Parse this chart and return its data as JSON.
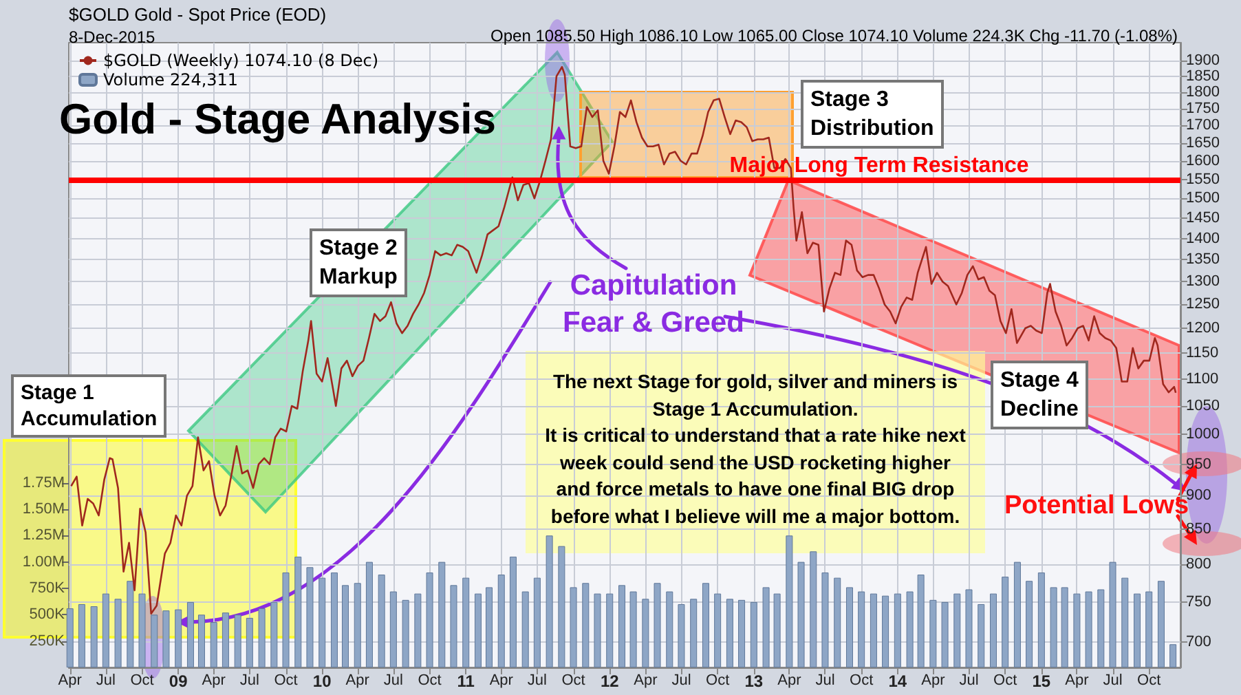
{
  "chart_data": {
    "type": "line",
    "title": "Gold - Stage Analysis",
    "log": "y",
    "grid": true,
    "legend": "top left",
    "xlim": [
      "2008-03-29",
      "2015-12-20"
    ],
    "xticks": [
      {
        "value": "2008-04",
        "label": "Apr"
      },
      {
        "value": "2008-07",
        "label": "Jul"
      },
      {
        "value": "2008-10",
        "label": "Oct"
      },
      {
        "value": "2009-01",
        "label": "09"
      },
      {
        "value": "2009-04",
        "label": "Apr"
      },
      {
        "value": "2009-07",
        "label": "Jul"
      },
      {
        "value": "2009-10",
        "label": "Oct"
      },
      {
        "value": "2010-01",
        "label": "10"
      },
      {
        "value": "2010-04",
        "label": "Apr"
      },
      {
        "value": "2010-07",
        "label": "Jul"
      },
      {
        "value": "2010-10",
        "label": "Oct"
      },
      {
        "value": "2011-01",
        "label": "11"
      },
      {
        "value": "2011-04",
        "label": "Apr"
      },
      {
        "value": "2011-07",
        "label": "Jul"
      },
      {
        "value": "2011-10",
        "label": "Oct"
      },
      {
        "value": "2012-01",
        "label": "12"
      },
      {
        "value": "2012-04",
        "label": "Apr"
      },
      {
        "value": "2012-07",
        "label": "Jul"
      },
      {
        "value": "2012-10",
        "label": "Oct"
      },
      {
        "value": "2013-01",
        "label": "13"
      },
      {
        "value": "2013-04",
        "label": "Apr"
      },
      {
        "value": "2013-07",
        "label": "Jul"
      },
      {
        "value": "2013-10",
        "label": "Oct"
      },
      {
        "value": "2014-01",
        "label": "14"
      },
      {
        "value": "2014-04",
        "label": "Apr"
      },
      {
        "value": "2014-07",
        "label": "Jul"
      },
      {
        "value": "2014-10",
        "label": "Oct"
      },
      {
        "value": "2015-01",
        "label": "15"
      },
      {
        "value": "2015-04",
        "label": "Apr"
      },
      {
        "value": "2015-07",
        "label": "Jul"
      },
      {
        "value": "2015-10",
        "label": "Oct"
      }
    ],
    "ylim": [
      670,
      1960
    ],
    "yticks": [
      700,
      750,
      800,
      850,
      900,
      950,
      1000,
      1050,
      1100,
      1150,
      1200,
      1250,
      1300,
      1350,
      1400,
      1450,
      1500,
      1550,
      1600,
      1650,
      1700,
      1750,
      1800,
      1850,
      1900
    ],
    "y2lim": [
      0,
      5920000
    ],
    "y2ticks": [
      {
        "value": 250000,
        "label": "250K"
      },
      {
        "value": 500000,
        "label": "500K"
      },
      {
        "value": 750000,
        "label": "750K"
      },
      {
        "value": 1000000,
        "label": "1.00M"
      },
      {
        "value": 1250000,
        "label": "1.25M"
      },
      {
        "value": 1500000,
        "label": "1.50M"
      },
      {
        "value": 1750000,
        "label": "1.75M"
      }
    ],
    "series": [
      {
        "name": "$GOLD (Weekly) 1074.10 (8 Dec)",
        "color": "#a0281e",
        "x": [
          "2008-04-04",
          "2008-04-18",
          "2008-05-02",
          "2008-05-16",
          "2008-05-30",
          "2008-06-13",
          "2008-06-27",
          "2008-07-11",
          "2008-07-18",
          "2008-08-01",
          "2008-08-15",
          "2008-08-29",
          "2008-09-12",
          "2008-09-26",
          "2008-10-10",
          "2008-10-24",
          "2008-11-07",
          "2008-11-28",
          "2008-12-12",
          "2008-12-26",
          "2009-01-09",
          "2009-01-23",
          "2009-02-06",
          "2009-02-20",
          "2009-03-06",
          "2009-03-20",
          "2009-04-03",
          "2009-04-17",
          "2009-05-01",
          "2009-05-15",
          "2009-05-29",
          "2009-06-12",
          "2009-06-26",
          "2009-07-10",
          "2009-07-24",
          "2009-08-07",
          "2009-08-21",
          "2009-09-04",
          "2009-09-18",
          "2009-10-02",
          "2009-10-16",
          "2009-10-30",
          "2009-11-13",
          "2009-11-27",
          "2009-12-04",
          "2009-12-18",
          "2010-01-01",
          "2010-01-15",
          "2010-01-29",
          "2010-02-05",
          "2010-02-19",
          "2010-03-05",
          "2010-03-19",
          "2010-04-02",
          "2010-04-16",
          "2010-04-30",
          "2010-05-14",
          "2010-05-28",
          "2010-06-11",
          "2010-06-25",
          "2010-07-09",
          "2010-07-23",
          "2010-08-06",
          "2010-08-20",
          "2010-09-03",
          "2010-09-17",
          "2010-10-01",
          "2010-10-15",
          "2010-10-29",
          "2010-11-12",
          "2010-11-26",
          "2010-12-10",
          "2010-12-24",
          "2011-01-07",
          "2011-01-28",
          "2011-02-11",
          "2011-02-25",
          "2011-03-11",
          "2011-03-25",
          "2011-04-08",
          "2011-04-29",
          "2011-05-13",
          "2011-05-27",
          "2011-06-10",
          "2011-06-24",
          "2011-07-08",
          "2011-07-22",
          "2011-08-05",
          "2011-08-19",
          "2011-09-02",
          "2011-09-09",
          "2011-09-23",
          "2011-10-07",
          "2011-10-21",
          "2011-11-04",
          "2011-11-18",
          "2011-12-02",
          "2011-12-16",
          "2011-12-30",
          "2012-01-13",
          "2012-01-27",
          "2012-02-10",
          "2012-02-24",
          "2012-03-09",
          "2012-03-23",
          "2012-04-06",
          "2012-04-20",
          "2012-05-04",
          "2012-05-18",
          "2012-06-01",
          "2012-06-15",
          "2012-06-29",
          "2012-07-13",
          "2012-07-27",
          "2012-08-10",
          "2012-08-24",
          "2012-09-07",
          "2012-09-21",
          "2012-10-05",
          "2012-10-19",
          "2012-11-02",
          "2012-11-16",
          "2012-11-30",
          "2012-12-14",
          "2012-12-28",
          "2013-01-11",
          "2013-01-25",
          "2013-02-08",
          "2013-02-22",
          "2013-03-08",
          "2013-03-22",
          "2013-04-05",
          "2013-04-12",
          "2013-04-19",
          "2013-05-03",
          "2013-05-17",
          "2013-05-31",
          "2013-06-14",
          "2013-06-28",
          "2013-07-12",
          "2013-07-26",
          "2013-08-09",
          "2013-08-23",
          "2013-09-06",
          "2013-09-20",
          "2013-10-04",
          "2013-10-18",
          "2013-11-01",
          "2013-11-15",
          "2013-11-29",
          "2013-12-13",
          "2013-12-27",
          "2014-01-10",
          "2014-01-24",
          "2014-02-07",
          "2014-02-21",
          "2014-03-14",
          "2014-03-28",
          "2014-04-11",
          "2014-04-25",
          "2014-05-09",
          "2014-05-30",
          "2014-06-13",
          "2014-06-27",
          "2014-07-11",
          "2014-07-25",
          "2014-08-08",
          "2014-08-22",
          "2014-09-05",
          "2014-09-19",
          "2014-10-03",
          "2014-10-17",
          "2014-10-31",
          "2014-11-21",
          "2014-12-05",
          "2014-12-19",
          "2015-01-02",
          "2015-01-16",
          "2015-01-23",
          "2015-02-06",
          "2015-02-20",
          "2015-03-06",
          "2015-03-20",
          "2015-04-03",
          "2015-04-17",
          "2015-05-01",
          "2015-05-15",
          "2015-05-29",
          "2015-06-12",
          "2015-06-26",
          "2015-07-10",
          "2015-07-24",
          "2015-08-07",
          "2015-08-21",
          "2015-09-04",
          "2015-09-18",
          "2015-10-02",
          "2015-10-16",
          "2015-10-23",
          "2015-11-06",
          "2015-11-20",
          "2015-12-04",
          "2015-12-08"
        ],
        "values": [
          915,
          930,
          855,
          895,
          888,
          870,
          925,
          960,
          958,
          912,
          790,
          830,
          765,
          880,
          845,
          735,
          745,
          815,
          830,
          870,
          855,
          900,
          915,
          995,
          940,
          955,
          900,
          870,
          885,
          930,
          980,
          935,
          940,
          912,
          950,
          960,
          950,
          995,
          1010,
          1005,
          1050,
          1045,
          1115,
          1175,
          1215,
          1110,
          1095,
          1140,
          1080,
          1050,
          1120,
          1135,
          1105,
          1125,
          1135,
          1180,
          1230,
          1215,
          1225,
          1255,
          1210,
          1190,
          1205,
          1230,
          1250,
          1275,
          1315,
          1370,
          1360,
          1365,
          1360,
          1385,
          1380,
          1370,
          1320,
          1360,
          1410,
          1420,
          1430,
          1475,
          1555,
          1495,
          1535,
          1540,
          1500,
          1545,
          1600,
          1660,
          1850,
          1880,
          1855,
          1640,
          1635,
          1640,
          1755,
          1725,
          1745,
          1600,
          1565,
          1640,
          1740,
          1725,
          1775,
          1710,
          1665,
          1640,
          1640,
          1645,
          1590,
          1620,
          1625,
          1600,
          1590,
          1620,
          1620,
          1670,
          1740,
          1775,
          1780,
          1725,
          1675,
          1715,
          1710,
          1695,
          1655,
          1660,
          1660,
          1665,
          1580,
          1580,
          1605,
          1580,
          1475,
          1395,
          1465,
          1365,
          1390,
          1385,
          1235,
          1285,
          1320,
          1315,
          1395,
          1385,
          1325,
          1310,
          1315,
          1315,
          1285,
          1250,
          1235,
          1210,
          1245,
          1265,
          1260,
          1320,
          1380,
          1295,
          1320,
          1300,
          1290,
          1250,
          1275,
          1315,
          1335,
          1305,
          1310,
          1280,
          1270,
          1215,
          1190,
          1240,
          1170,
          1200,
          1205,
          1195,
          1190,
          1275,
          1295,
          1235,
          1205,
          1165,
          1180,
          1200,
          1205,
          1175,
          1225,
          1190,
          1180,
          1175,
          1160,
          1095,
          1095,
          1160,
          1120,
          1135,
          1135,
          1180,
          1165,
          1090,
          1075,
          1085,
          1074.1
        ]
      },
      {
        "name": "Volume 224,311",
        "type": "bar",
        "axis": "y2",
        "color": "#8ea6c6",
        "x": [
          "2008-04",
          "2008-05",
          "2008-06",
          "2008-07",
          "2008-08",
          "2008-09",
          "2008-10",
          "2008-11",
          "2008-12",
          "2009-01",
          "2009-02",
          "2009-03",
          "2009-04",
          "2009-05",
          "2009-06",
          "2009-07",
          "2009-08",
          "2009-09",
          "2009-10",
          "2009-11",
          "2009-12",
          "2010-01",
          "2010-02",
          "2010-03",
          "2010-04",
          "2010-05",
          "2010-06",
          "2010-07",
          "2010-08",
          "2010-09",
          "2010-10",
          "2010-11",
          "2010-12",
          "2011-01",
          "2011-02",
          "2011-03",
          "2011-04",
          "2011-05",
          "2011-06",
          "2011-07",
          "2011-08",
          "2011-09",
          "2011-10",
          "2011-11",
          "2011-12",
          "2012-01",
          "2012-02",
          "2012-03",
          "2012-04",
          "2012-05",
          "2012-06",
          "2012-07",
          "2012-08",
          "2012-09",
          "2012-10",
          "2012-11",
          "2012-12",
          "2013-01",
          "2013-02",
          "2013-03",
          "2013-04",
          "2013-05",
          "2013-06",
          "2013-07",
          "2013-08",
          "2013-09",
          "2013-10",
          "2013-11",
          "2013-12",
          "2014-01",
          "2014-02",
          "2014-03",
          "2014-04",
          "2014-05",
          "2014-06",
          "2014-07",
          "2014-08",
          "2014-09",
          "2014-10",
          "2014-11",
          "2014-12",
          "2015-01",
          "2015-02",
          "2015-03",
          "2015-04",
          "2015-05",
          "2015-06",
          "2015-07",
          "2015-08",
          "2015-09",
          "2015-10",
          "2015-11",
          "2015-12"
        ],
        "values": [
          560000,
          600000,
          580000,
          700000,
          650000,
          820000,
          700000,
          500000,
          540000,
          550000,
          620000,
          500000,
          430000,
          520000,
          500000,
          470000,
          560000,
          620000,
          900000,
          1050000,
          950000,
          850000,
          900000,
          780000,
          800000,
          1000000,
          880000,
          720000,
          640000,
          700000,
          900000,
          1000000,
          780000,
          850000,
          700000,
          760000,
          880000,
          1050000,
          720000,
          850000,
          1250000,
          1150000,
          760000,
          800000,
          700000,
          700000,
          780000,
          720000,
          650000,
          800000,
          720000,
          600000,
          650000,
          800000,
          700000,
          650000,
          640000,
          620000,
          760000,
          700000,
          1250000,
          1000000,
          1100000,
          900000,
          850000,
          760000,
          720000,
          700000,
          680000,
          700000,
          720000,
          880000,
          640000,
          620000,
          700000,
          740000,
          600000,
          700000,
          860000,
          1000000,
          820000,
          900000,
          760000,
          760000,
          700000,
          720000,
          740000,
          1000000,
          850000,
          700000,
          720000,
          820000,
          220000
        ]
      }
    ],
    "ref_lines": [
      {
        "axis": "y",
        "value": 1550,
        "label": "Major Long Term Resistance",
        "color": "#ff0000"
      }
    ],
    "annotations": [
      "$GOLD Gold - Spot Price (EOD)",
      "8-Dec-2015",
      "Open 1085.50 High 1086.10 Low 1065.00 Close 1074.10 Volume 224.3K Chg -11.70 (-1.08%)",
      "Stage 1\nAccumulation",
      "Stage 2\nMarkup",
      "Stage 3\nDistribution",
      "Stage 4\nDecline",
      {
        "text": "Capitulation\nFear & Greed",
        "x": "2011-08-25",
        "y": 1700
      },
      "The next Stage for gold, silver and miners is\nStage 1 Accumulation.\nIt is critical to understand that a rate hike next\nweek could send the USD rocketing higher\nand force metals to have one final BIG drop\nbefore what I believe will me a major bottom.",
      "Potential Lows"
    ]
  }
}
